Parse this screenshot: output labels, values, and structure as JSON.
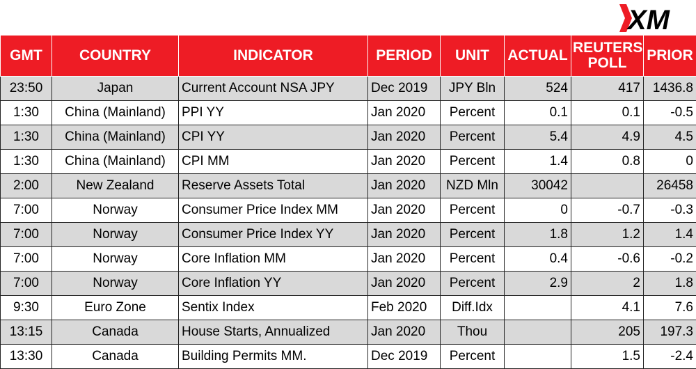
{
  "brand": {
    "logo_text": "XM",
    "colors": {
      "header_bg": "#ee1c25",
      "shade": "#d9d9d9"
    }
  },
  "columns": [
    "GMT",
    "COUNTRY",
    "INDICATOR",
    "PERIOD",
    "UNIT",
    "ACTUAL",
    "REUTERS POLL",
    "PRIOR"
  ],
  "rows": [
    [
      "23:50",
      "Japan",
      "Current Account NSA JPY",
      "Dec 2019",
      "JPY Bln",
      "524",
      "417",
      "1436.8"
    ],
    [
      "1:30",
      "China (Mainland)",
      "PPI YY",
      "Jan 2020",
      "Percent",
      "0.1",
      "0.1",
      "-0.5"
    ],
    [
      "1:30",
      "China (Mainland)",
      "CPI YY",
      "Jan 2020",
      "Percent",
      "5.4",
      "4.9",
      "4.5"
    ],
    [
      "1:30",
      "China (Mainland)",
      "CPI MM",
      "Jan 2020",
      "Percent",
      "1.4",
      "0.8",
      "0"
    ],
    [
      "2:00",
      "New Zealand",
      "Reserve Assets Total",
      "Jan 2020",
      "NZD Mln",
      "30042",
      "",
      "26458"
    ],
    [
      "7:00",
      "Norway",
      "Consumer Price Index MM",
      "Jan 2020",
      "Percent",
      "0",
      "-0.7",
      "-0.3"
    ],
    [
      "7:00",
      "Norway",
      "Consumer Price Index YY",
      "Jan 2020",
      "Percent",
      "1.8",
      "1.2",
      "1.4"
    ],
    [
      "7:00",
      "Norway",
      "Core Inflation MM",
      "Jan 2020",
      "Percent",
      "0.4",
      "-0.6",
      "-0.2"
    ],
    [
      "7:00",
      "Norway",
      "Core Inflation YY",
      "Jan 2020",
      "Percent",
      "2.9",
      "2",
      "1.8"
    ],
    [
      "9:30",
      "Euro Zone",
      "Sentix Index",
      "Feb 2020",
      "Diff.Idx",
      "",
      "4.1",
      "7.6"
    ],
    [
      "13:15",
      "Canada",
      "House Starts, Annualized",
      "Jan 2020",
      "Thou",
      "",
      "205",
      "197.3"
    ],
    [
      "13:30",
      "Canada",
      "Building Permits MM.",
      "Dec 2019",
      "Percent",
      "",
      "1.5",
      "-2.4"
    ]
  ]
}
